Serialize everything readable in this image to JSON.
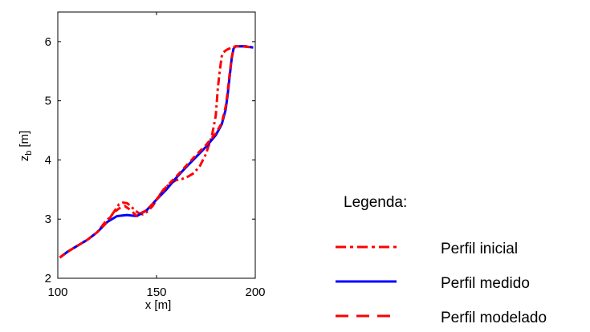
{
  "chart_data": {
    "type": "line",
    "title": "",
    "xlabel": "x [m]",
    "ylabel_main": "z",
    "ylabel_sub": "b",
    "ylabel_unit": "[m]",
    "xlim": [
      100,
      200
    ],
    "ylim": [
      2,
      6.5
    ],
    "xticks": [
      100,
      150,
      200
    ],
    "yticks": [
      2,
      3,
      4,
      5,
      6
    ],
    "grid": false,
    "legend": {
      "title": "Legenda:",
      "placement": "right, outside plot"
    },
    "series": [
      {
        "name": "Perfil inicial",
        "color": "#ff0000",
        "style": "dash-dot",
        "x": [
          101,
          105,
          110,
          115,
          120,
          124,
          127,
          129,
          131,
          133,
          135,
          137,
          139,
          141,
          143,
          145,
          148,
          151,
          154,
          157,
          160,
          163,
          166,
          169,
          172,
          175,
          178,
          180,
          181,
          182,
          183,
          184,
          185,
          186,
          188,
          190,
          193,
          196,
          199
        ],
        "y": [
          2.35,
          2.45,
          2.55,
          2.65,
          2.78,
          2.95,
          3.05,
          3.15,
          3.25,
          3.28,
          3.27,
          3.22,
          3.15,
          3.1,
          3.08,
          3.12,
          3.22,
          3.38,
          3.52,
          3.6,
          3.66,
          3.68,
          3.72,
          3.78,
          3.9,
          4.1,
          4.4,
          4.75,
          5.2,
          5.5,
          5.75,
          5.82,
          5.85,
          5.87,
          5.9,
          5.92,
          5.92,
          5.92,
          5.9
        ]
      },
      {
        "name": "Perfil medido",
        "color": "#0000ff",
        "style": "solid",
        "x": [
          101,
          105,
          110,
          115,
          120,
          125,
          130,
          135,
          140,
          145,
          150,
          155,
          160,
          165,
          170,
          175,
          180,
          183,
          185,
          186,
          187,
          188,
          189,
          190,
          192,
          195,
          199
        ],
        "y": [
          2.35,
          2.45,
          2.55,
          2.65,
          2.78,
          2.95,
          3.05,
          3.07,
          3.05,
          3.15,
          3.33,
          3.5,
          3.7,
          3.88,
          4.05,
          4.22,
          4.42,
          4.6,
          4.85,
          5.1,
          5.4,
          5.7,
          5.88,
          5.92,
          5.92,
          5.92,
          5.9
        ]
      },
      {
        "name": "Perfil modelado",
        "color": "#ff0000",
        "style": "dashed",
        "x": [
          101,
          105,
          110,
          115,
          120,
          125,
          128,
          131,
          134,
          137,
          140,
          142,
          145,
          150,
          155,
          160,
          165,
          170,
          175,
          180,
          183,
          185,
          186,
          187,
          188,
          189,
          190,
          193,
          196,
          199
        ],
        "y": [
          2.35,
          2.45,
          2.55,
          2.65,
          2.78,
          2.95,
          3.1,
          3.18,
          3.22,
          3.15,
          3.05,
          3.1,
          3.15,
          3.33,
          3.55,
          3.72,
          3.9,
          4.08,
          4.25,
          4.45,
          4.62,
          4.9,
          5.15,
          5.45,
          5.72,
          5.88,
          5.92,
          5.92,
          5.91,
          5.9
        ]
      }
    ]
  }
}
